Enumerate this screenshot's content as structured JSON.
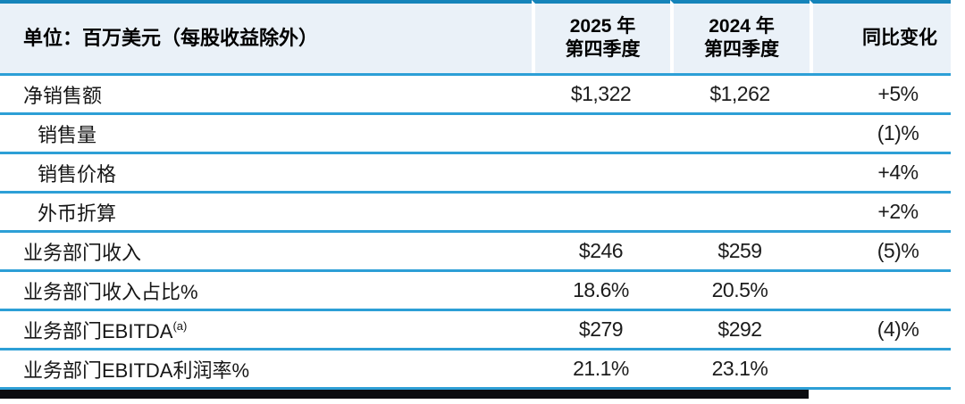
{
  "table": {
    "unit_label": "单位：百万美元（每股收益除外）",
    "columns": {
      "q4_2025": {
        "line1": "2025 年",
        "line2": "第四季度"
      },
      "q4_2024": {
        "line1": "2024 年",
        "line2": "第四季度"
      },
      "yoy": {
        "label": "同比变化"
      }
    },
    "rows": [
      {
        "label": "净销售额",
        "indent": false,
        "q4_2025": "$1,322",
        "q4_2024": "$1,262",
        "yoy": "+5%"
      },
      {
        "label": "销售量",
        "indent": true,
        "q4_2025": "",
        "q4_2024": "",
        "yoy": "(1)%"
      },
      {
        "label": "销售价格",
        "indent": true,
        "q4_2025": "",
        "q4_2024": "",
        "yoy": "+4%"
      },
      {
        "label": "外币折算",
        "indent": true,
        "q4_2025": "",
        "q4_2024": "",
        "yoy": "+2%"
      },
      {
        "label": "业务部门收入",
        "indent": false,
        "q4_2025": "$246",
        "q4_2024": "$259",
        "yoy": "(5)%"
      },
      {
        "label": "业务部门收入占比%",
        "indent": false,
        "q4_2025": "18.6%",
        "q4_2024": "20.5%",
        "yoy": ""
      },
      {
        "label": "业务部门EBITDA",
        "sup": "(a)",
        "indent": false,
        "q4_2025": "$279",
        "q4_2024": "$292",
        "yoy": "(4)%"
      },
      {
        "label": "业务部门EBITDA利润率%",
        "indent": false,
        "q4_2025": "21.1%",
        "q4_2024": "23.1%",
        "yoy": ""
      }
    ],
    "colors": {
      "top_border": "#1584ba",
      "row_separator": "#2d9fd6",
      "header_background": "#eaf1f8",
      "bottom_bar": "#0b0c10",
      "text": "#161616"
    }
  }
}
